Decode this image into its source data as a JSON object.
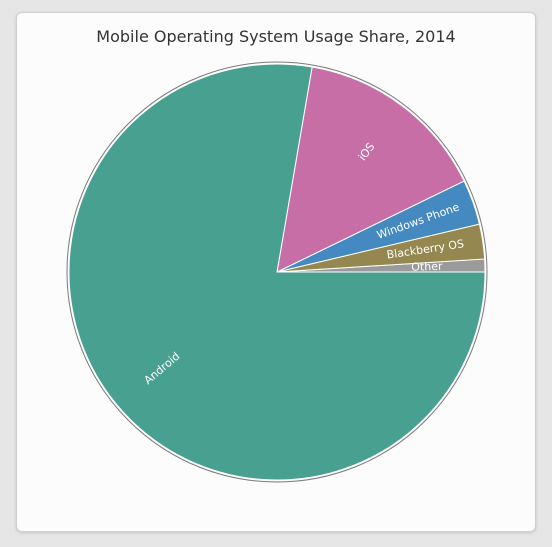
{
  "chart_data": {
    "type": "pie",
    "title": "Mobile Operating System Usage Share, 2014",
    "slices": [
      {
        "label": "Other",
        "value": 1.0,
        "color": "#9a9a9a"
      },
      {
        "label": "Blackberry OS",
        "value": 2.7,
        "color": "#948850"
      },
      {
        "label": "Windows Phone",
        "value": 3.5,
        "color": "#4589c1"
      },
      {
        "label": "iOS",
        "value": 15.1,
        "color": "#c86ea6"
      },
      {
        "label": "Android",
        "value": 77.7,
        "color": "#48a090"
      }
    ]
  }
}
